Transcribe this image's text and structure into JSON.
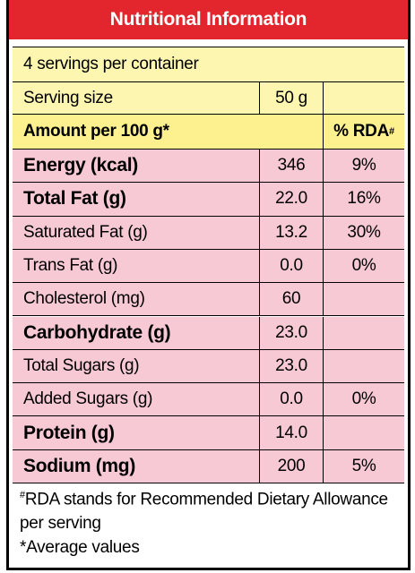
{
  "header": {
    "title": "Nutritional Information"
  },
  "servings": "4 servings per container",
  "serving_size": {
    "label": "Serving size",
    "value": "50 g"
  },
  "table": {
    "columns": [
      {
        "text": "Amount per 100 g*"
      },
      {
        "text": "% RDA",
        "mark": "#"
      }
    ],
    "rows": [
      {
        "name": "Energy (kcal)",
        "amount": "346",
        "rda": "9%",
        "emphasis": true
      },
      {
        "name": "Total Fat (g)",
        "amount": "22.0",
        "rda": "16%",
        "emphasis": true
      },
      {
        "name": "Saturated Fat (g)",
        "amount": "13.2",
        "rda": "30%",
        "emphasis": false
      },
      {
        "name": "Trans Fat (g)",
        "amount": "0.0",
        "rda": "0%",
        "emphasis": false
      },
      {
        "name": "Cholesterol (mg)",
        "amount": "60",
        "emphasis": false
      },
      {
        "name": "Carbohydrate (g)",
        "amount": "23.0",
        "emphasis": true
      },
      {
        "name": "Total Sugars (g)",
        "amount": "23.0",
        "emphasis": false
      },
      {
        "name": "Added Sugars (g)",
        "amount": "0.0",
        "rda": "0%",
        "emphasis": false
      },
      {
        "name": "Protein (g)",
        "amount": "14.0",
        "emphasis": true
      },
      {
        "name": "Sodium (mg)",
        "amount": "200",
        "rda": "5%",
        "emphasis": true
      }
    ]
  },
  "footnotes": [
    {
      "mark": "#",
      "text": "RDA stands for Recommended Dietary Allowance per serving"
    },
    {
      "text": "*Average values"
    }
  ]
}
